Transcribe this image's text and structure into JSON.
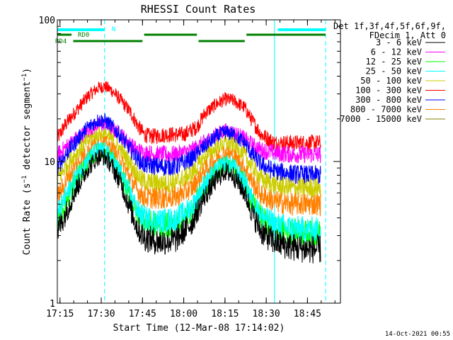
{
  "chart_data": {
    "type": "line",
    "title": "RHESSI Count Rates",
    "xlabel": "Start Time (12-Mar-08 17:14:02)",
    "ylabel_main": "Count Rate (s",
    "ylabel_exp1": "−1",
    "ylabel_mid": " detector segment",
    "ylabel_exp2": "−1",
    "ylabel_end": ")",
    "yscale": "log",
    "xlim": [
      17.2339,
      18.95
    ],
    "ylim": [
      1,
      100
    ],
    "x_ticks": [
      {
        "x": 17.25,
        "label": "17:15"
      },
      {
        "x": 17.5,
        "label": "17:30"
      },
      {
        "x": 17.75,
        "label": "17:45"
      },
      {
        "x": 18.0,
        "label": "18:00"
      },
      {
        "x": 18.25,
        "label": "18:15"
      },
      {
        "x": 18.5,
        "label": "18:30"
      },
      {
        "x": 18.75,
        "label": "18:45"
      }
    ],
    "y_ticks": [
      {
        "y": 1,
        "label": "1"
      },
      {
        "y": 10,
        "label": "10"
      },
      {
        "y": 100,
        "label": "100"
      }
    ],
    "legend": {
      "placement": "right",
      "header": [
        "Det 1f,3f,4f,5f,6f,9f,",
        "FDecim 1, Att 0"
      ],
      "entries": [
        {
          "label": "3 - 6 keV",
          "color": "#000000"
        },
        {
          "label": "6 - 12 keV",
          "color": "#ff00ff"
        },
        {
          "label": "12 - 25 keV",
          "color": "#00ff00"
        },
        {
          "label": "25 - 50 keV",
          "color": "#00ffff"
        },
        {
          "label": "50 - 100 keV",
          "color": "#cccc00"
        },
        {
          "label": "100 - 300 keV",
          "color": "#ff0000"
        },
        {
          "label": "300 - 800 keV",
          "color": "#0000ff"
        },
        {
          "label": "800 - 7000 keV",
          "color": "#ff8000"
        },
        {
          "label": "7000 - 15000 keV",
          "color": "#808000"
        }
      ]
    },
    "series": [
      {
        "color": "#ff0000",
        "points": [
          [
            17.2339,
            14.5
          ],
          [
            17.28,
            18
          ],
          [
            17.35,
            23
          ],
          [
            17.42,
            29
          ],
          [
            17.48,
            33
          ],
          [
            17.52,
            34
          ],
          [
            17.56,
            32
          ],
          [
            17.62,
            27
          ],
          [
            17.68,
            22
          ],
          [
            17.72,
            18
          ],
          [
            17.76,
            15.5
          ],
          [
            17.8,
            15
          ],
          [
            17.9,
            15.5
          ],
          [
            18.0,
            15.5
          ],
          [
            18.08,
            17.5
          ],
          [
            18.13,
            22
          ],
          [
            18.2,
            25.5
          ],
          [
            18.25,
            27.5
          ],
          [
            18.3,
            27
          ],
          [
            18.37,
            24
          ],
          [
            18.42,
            19
          ],
          [
            18.47,
            15.5
          ],
          [
            18.55,
            13.5
          ],
          [
            18.65,
            13.5
          ],
          [
            18.75,
            13.5
          ],
          [
            18.83,
            13.5
          ]
        ]
      },
      {
        "color": "#ff00ff",
        "points": [
          [
            17.2339,
            11
          ],
          [
            17.28,
            12.5
          ],
          [
            17.35,
            14.5
          ],
          [
            17.42,
            16.5
          ],
          [
            17.48,
            18
          ],
          [
            17.52,
            18
          ],
          [
            17.56,
            17
          ],
          [
            17.62,
            15.5
          ],
          [
            17.68,
            13
          ],
          [
            17.72,
            12
          ],
          [
            17.76,
            11.5
          ],
          [
            17.85,
            11.2
          ],
          [
            17.95,
            11.2
          ],
          [
            18.05,
            12
          ],
          [
            18.12,
            13.5
          ],
          [
            18.2,
            15.5
          ],
          [
            18.25,
            16.5
          ],
          [
            18.3,
            16
          ],
          [
            18.37,
            14.5
          ],
          [
            18.42,
            13
          ],
          [
            18.47,
            12
          ],
          [
            18.55,
            11.5
          ],
          [
            18.65,
            11.2
          ],
          [
            18.75,
            11.2
          ],
          [
            18.83,
            11.2
          ]
        ]
      },
      {
        "color": "#0000ff",
        "points": [
          [
            17.2339,
            9
          ],
          [
            17.28,
            11
          ],
          [
            17.35,
            14
          ],
          [
            17.42,
            17.5
          ],
          [
            17.48,
            19.5
          ],
          [
            17.52,
            19.5
          ],
          [
            17.56,
            18
          ],
          [
            17.62,
            15
          ],
          [
            17.68,
            12
          ],
          [
            17.72,
            10.5
          ],
          [
            17.76,
            9.5
          ],
          [
            17.85,
            9.2
          ],
          [
            17.95,
            9.2
          ],
          [
            18.05,
            10.5
          ],
          [
            18.12,
            12.5
          ],
          [
            18.2,
            15
          ],
          [
            18.25,
            16
          ],
          [
            18.3,
            15.5
          ],
          [
            18.37,
            13.5
          ],
          [
            18.42,
            11
          ],
          [
            18.47,
            9.5
          ],
          [
            18.55,
            8.5
          ],
          [
            18.65,
            8.2
          ],
          [
            18.75,
            8
          ],
          [
            18.83,
            8
          ]
        ]
      },
      {
        "color": "#cccc00",
        "points": [
          [
            17.2339,
            7.5
          ],
          [
            17.28,
            9
          ],
          [
            17.35,
            11.5
          ],
          [
            17.42,
            14
          ],
          [
            17.48,
            15.5
          ],
          [
            17.52,
            15.5
          ],
          [
            17.56,
            14.5
          ],
          [
            17.62,
            12
          ],
          [
            17.68,
            9.5
          ],
          [
            17.72,
            8
          ],
          [
            17.76,
            7.2
          ],
          [
            17.85,
            7
          ],
          [
            17.95,
            7.1
          ],
          [
            18.05,
            8.2
          ],
          [
            18.12,
            10.5
          ],
          [
            18.2,
            12.5
          ],
          [
            18.25,
            13.5
          ],
          [
            18.3,
            13
          ],
          [
            18.37,
            11
          ],
          [
            18.42,
            9
          ],
          [
            18.47,
            7.5
          ],
          [
            18.55,
            6.8
          ],
          [
            18.65,
            6.5
          ],
          [
            18.75,
            6.5
          ],
          [
            18.83,
            6.5
          ]
        ]
      },
      {
        "color": "#ff8000",
        "points": [
          [
            17.2339,
            5.5
          ],
          [
            17.28,
            7
          ],
          [
            17.35,
            9.5
          ],
          [
            17.42,
            12
          ],
          [
            17.48,
            13.5
          ],
          [
            17.52,
            13.5
          ],
          [
            17.56,
            12.5
          ],
          [
            17.62,
            10
          ],
          [
            17.68,
            7.5
          ],
          [
            17.72,
            6.2
          ],
          [
            17.76,
            5.6
          ],
          [
            17.85,
            5.5
          ],
          [
            17.95,
            5.6
          ],
          [
            18.05,
            6.5
          ],
          [
            18.12,
            8.5
          ],
          [
            18.2,
            10.5
          ],
          [
            18.25,
            11.5
          ],
          [
            18.3,
            11
          ],
          [
            18.37,
            9
          ],
          [
            18.42,
            7
          ],
          [
            18.47,
            5.8
          ],
          [
            18.55,
            5.2
          ],
          [
            18.65,
            5
          ],
          [
            18.75,
            5
          ],
          [
            18.83,
            5
          ]
        ]
      },
      {
        "color": "#00ff00",
        "points": [
          [
            17.2339,
            3.8
          ],
          [
            17.28,
            5
          ],
          [
            17.35,
            7.5
          ],
          [
            17.42,
            10
          ],
          [
            17.48,
            11.8
          ],
          [
            17.52,
            11.8
          ],
          [
            17.56,
            10.5
          ],
          [
            17.62,
            8
          ],
          [
            17.68,
            5.5
          ],
          [
            17.72,
            4.3
          ],
          [
            17.76,
            3.8
          ],
          [
            17.85,
            3.5
          ],
          [
            17.95,
            3.6
          ],
          [
            18.05,
            4.5
          ],
          [
            18.12,
            6.5
          ],
          [
            18.2,
            8.5
          ],
          [
            18.25,
            9.5
          ],
          [
            18.3,
            9
          ],
          [
            18.37,
            7
          ],
          [
            18.42,
            5
          ],
          [
            18.47,
            4
          ],
          [
            18.55,
            3.4
          ],
          [
            18.65,
            3.2
          ],
          [
            18.75,
            3.1
          ],
          [
            18.83,
            3.1
          ]
        ]
      },
      {
        "color": "#00ffff",
        "points": [
          [
            17.2339,
            4.2
          ],
          [
            17.28,
            5.5
          ],
          [
            17.35,
            8
          ],
          [
            17.42,
            10.5
          ],
          [
            17.48,
            12.2
          ],
          [
            17.52,
            12
          ],
          [
            17.56,
            10.8
          ],
          [
            17.62,
            8.2
          ],
          [
            17.68,
            5.8
          ],
          [
            17.72,
            4.5
          ],
          [
            17.76,
            4
          ],
          [
            17.85,
            3.8
          ],
          [
            17.95,
            3.9
          ],
          [
            18.05,
            4.8
          ],
          [
            18.12,
            6.8
          ],
          [
            18.2,
            8.8
          ],
          [
            18.25,
            9.8
          ],
          [
            18.3,
            9.3
          ],
          [
            18.37,
            7.2
          ],
          [
            18.42,
            5.2
          ],
          [
            18.47,
            4.2
          ],
          [
            18.55,
            3.6
          ],
          [
            18.65,
            3.4
          ],
          [
            18.75,
            3.3
          ],
          [
            18.83,
            3.3
          ]
        ]
      },
      {
        "color": "#000000",
        "points": [
          [
            17.2339,
            3.2
          ],
          [
            17.28,
            4.2
          ],
          [
            17.35,
            6.5
          ],
          [
            17.42,
            9
          ],
          [
            17.48,
            10.8
          ],
          [
            17.52,
            10.8
          ],
          [
            17.56,
            9.5
          ],
          [
            17.62,
            7
          ],
          [
            17.68,
            4.5
          ],
          [
            17.72,
            3.4
          ],
          [
            17.76,
            2.9
          ],
          [
            17.85,
            2.7
          ],
          [
            17.95,
            2.8
          ],
          [
            18.05,
            3.7
          ],
          [
            18.12,
            5.5
          ],
          [
            18.2,
            7.5
          ],
          [
            18.25,
            8.5
          ],
          [
            18.3,
            8
          ],
          [
            18.37,
            6
          ],
          [
            18.42,
            4.2
          ],
          [
            18.47,
            3.2
          ],
          [
            18.55,
            2.7
          ],
          [
            18.65,
            2.5
          ],
          [
            18.75,
            2.4
          ],
          [
            18.83,
            2.4
          ]
        ]
      }
    ],
    "state_bars": {
      "cyan": {
        "label": "N",
        "color": "#00ffff",
        "segments": [
          [
            17.2339,
            17.52
          ],
          [
            18.57,
            18.86
          ]
        ]
      },
      "rd0": {
        "label": "RD0",
        "color": "#008000",
        "segments": [
          [
            17.2339,
            17.32
          ],
          [
            17.76,
            18.08
          ],
          [
            18.38,
            18.86
          ]
        ]
      },
      "rd4": {
        "label": "RD4",
        "color": "#008000",
        "segments": [
          [
            17.33,
            17.75
          ],
          [
            18.09,
            18.37
          ]
        ]
      }
    },
    "markers": {
      "solid": [
        17.2339,
        18.55
      ],
      "dashed": [
        17.52,
        18.86
      ]
    },
    "annotation_color": "#00ffff"
  },
  "footer": {
    "timestamp": "14-Oct-2021 00:55"
  }
}
